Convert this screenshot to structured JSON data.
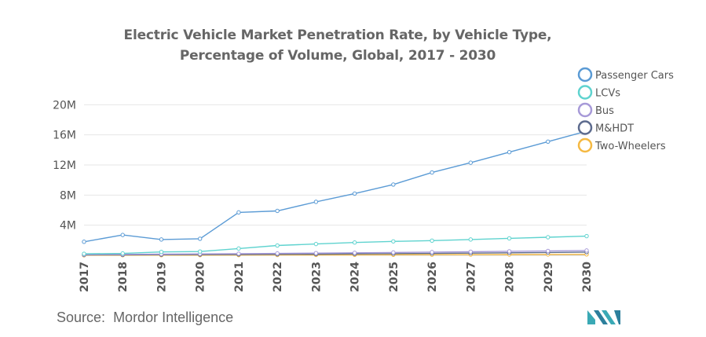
{
  "title_line1": "Electric Vehicle Market Penetration Rate, by Vehicle Type,",
  "title_line2": "Percentage of Volume, Global, 2017 - 2030",
  "source": {
    "label": "Source:",
    "name": "Mordor Intelligence"
  },
  "colors": {
    "passenger_cars": "#5b9bd5",
    "lcvs": "#5fd3cf",
    "bus": "#a79ad8",
    "mhdt": "#5d6b8e",
    "two_wheelers": "#f5b942",
    "logo": "#3aa9b5"
  },
  "chart_data": {
    "type": "line",
    "title": "Electric Vehicle Market Penetration Rate, by Vehicle Type, Percentage of Volume, Global, 2017 - 2030",
    "xlabel": "",
    "ylabel": "",
    "x": [
      "2017",
      "2018",
      "2019",
      "2020",
      "2021",
      "2022",
      "2023",
      "2024",
      "2025",
      "2026",
      "2027",
      "2028",
      "2029",
      "2030"
    ],
    "yticks": [
      {
        "value": 4000000,
        "label": "4M"
      },
      {
        "value": 8000000,
        "label": "8M"
      },
      {
        "value": 12000000,
        "label": "12M"
      },
      {
        "value": 16000000,
        "label": "16M"
      },
      {
        "value": 20000000,
        "label": "20M"
      }
    ],
    "ylim": [
      0,
      24000000
    ],
    "grid": "horizontal",
    "legend_position": "top-right",
    "series": [
      {
        "name": "Passenger Cars",
        "color_key": "passenger_cars",
        "values": [
          1800000,
          2700000,
          2100000,
          2200000,
          5700000,
          5900000,
          7100000,
          8200000,
          9400000,
          11000000,
          12300000,
          13700000,
          15100000,
          16500000
        ]
      },
      {
        "name": "LCVs",
        "color_key": "lcvs",
        "values": [
          200000,
          250000,
          450000,
          500000,
          900000,
          1300000,
          1500000,
          1700000,
          1850000,
          1950000,
          2100000,
          2250000,
          2400000,
          2550000
        ]
      },
      {
        "name": "Bus",
        "color_key": "bus",
        "values": [
          100000,
          130000,
          160000,
          190000,
          220000,
          250000,
          290000,
          330000,
          380000,
          430000,
          480000,
          530000,
          580000,
          640000
        ]
      },
      {
        "name": "M&HDT",
        "color_key": "mhdt",
        "values": [
          50000,
          60000,
          80000,
          100000,
          120000,
          140000,
          160000,
          190000,
          220000,
          250000,
          290000,
          330000,
          380000,
          430000
        ]
      },
      {
        "name": "Two-Wheelers",
        "color_key": "two_wheelers",
        "values": [
          10000,
          15000,
          20000,
          25000,
          35000,
          45000,
          55000,
          65000,
          75000,
          85000,
          95000,
          105000,
          115000,
          125000
        ]
      }
    ]
  }
}
